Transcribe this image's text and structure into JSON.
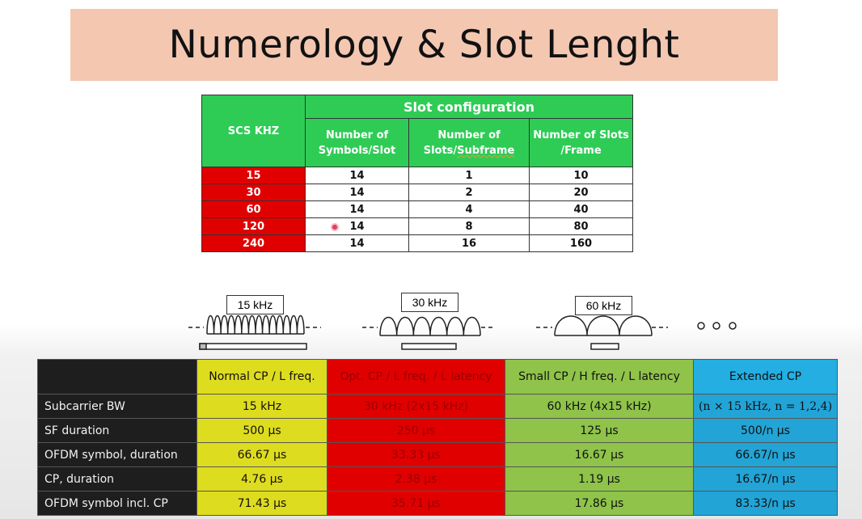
{
  "title": "Numerology & Slot Lenght",
  "slot_table": {
    "scs_header": "SCS KHZ",
    "group_header": "Slot configuration",
    "col1": "Number of Symbols/Slot",
    "col1_line1": "Number of",
    "col1_line2": "Symbols/Slot",
    "col2_line1": "Number of",
    "col2_line2a": "Slots/",
    "col2_line2b": "Subframe",
    "col3_line1": "Number of Slots",
    "col3_line2": "/Frame",
    "rows": [
      {
        "scs": "15",
        "symbols": "14",
        "slots_sf": "1",
        "slots_frame": "10"
      },
      {
        "scs": "30",
        "symbols": "14",
        "slots_sf": "2",
        "slots_frame": "20"
      },
      {
        "scs": "60",
        "symbols": "14",
        "slots_sf": "4",
        "slots_frame": "40"
      },
      {
        "scs": "120",
        "symbols": "14",
        "slots_sf": "8",
        "slots_frame": "80"
      },
      {
        "scs": "240",
        "symbols": "14",
        "slots_sf": "16",
        "slots_frame": "160"
      }
    ]
  },
  "diagram": {
    "labels": [
      "15 kHz",
      "30 kHz",
      "60 kHz"
    ],
    "ellipsis": "o o o"
  },
  "numerology_table": {
    "headers": [
      "",
      "Normal CP / L freq.",
      "Opt. CP / L freq. / L latency",
      "Small CP / H freq. / L latency",
      "Extended CP"
    ],
    "rows": [
      {
        "label": "Subcarrier BW",
        "v1": "15 kHz",
        "v2": "30 kHz  (2x15 kHz)",
        "v3": "60 kHz  (4x15 kHz)",
        "v4": "(n × 15 kHz, n = 1,2,4)"
      },
      {
        "label": "SF duration",
        "v1": "500 µs",
        "v2": "250 µs",
        "v3": "125 µs",
        "v4": "500/n µs"
      },
      {
        "label": "OFDM symbol, duration",
        "v1": "66.67 µs",
        "v2": "33.33 µs",
        "v3": "16.67 µs",
        "v4": "66.67/n µs"
      },
      {
        "label": "CP, duration",
        "v1": "4.76 µs",
        "v2": "2.38 µs",
        "v3": "1.19 µs",
        "v4": "16.67/n µs"
      },
      {
        "label": "OFDM symbol incl. CP",
        "v1": "71.43 µs",
        "v2": "35.71 µs",
        "v3": "17.86 µs",
        "v4": "83.33/n µs"
      }
    ]
  },
  "colors": {
    "title_bg": "#f4c7b1",
    "green": "#2ecc55",
    "red": "#e00000",
    "yellow": "#dedc1e",
    "light_green": "#8fc34a",
    "blue": "#24aee2",
    "dark": "#1e1e1e"
  }
}
